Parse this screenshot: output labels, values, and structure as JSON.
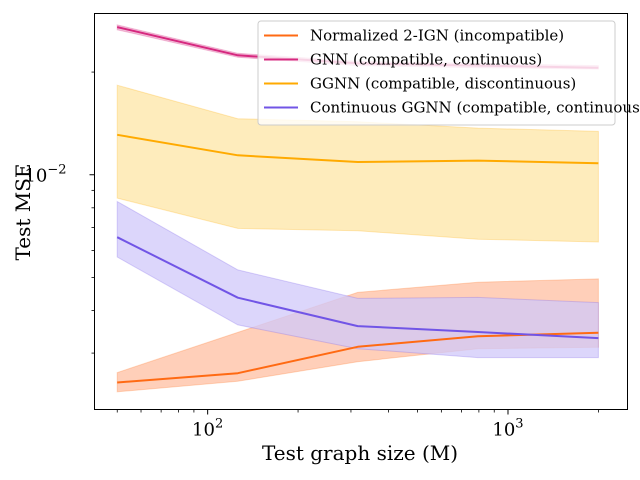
{
  "chart_data": {
    "type": "line",
    "xlabel": "Test graph size (M)",
    "ylabel": "Test MSE",
    "xscale": "log",
    "yscale": "log",
    "xlim": [
      42,
      2500
    ],
    "ylim": [
      0.00205,
      0.0297
    ],
    "x": [
      50,
      126,
      316,
      794,
      2000
    ],
    "x_ticks": [
      {
        "value": 100,
        "base": "10",
        "exp": "2"
      },
      {
        "value": 1000,
        "base": "10",
        "exp": "3"
      }
    ],
    "y_ticks": [
      {
        "value": 0.01,
        "base": "10",
        "exp": "−2"
      }
    ],
    "legend_position": "top-right",
    "grid": false,
    "series": [
      {
        "name": "Normalized 2-IGN (incompatible)",
        "color": "#ff6a13",
        "fill_color": "#ffbfa1",
        "values": [
          0.00246,
          0.00262,
          0.00313,
          0.00336,
          0.00344
        ],
        "lower": [
          0.00231,
          0.00248,
          0.00283,
          0.00309,
          0.00312
        ],
        "upper": [
          0.00263,
          0.00345,
          0.00452,
          0.00484,
          0.00495
        ]
      },
      {
        "name": "GNN (compatible, continuous)",
        "color": "#d6287f",
        "fill_color": "#eeaacc",
        "values": [
          0.0271,
          0.0224,
          0.0212,
          0.0209,
          0.0206
        ],
        "lower": [
          0.0266,
          0.0221,
          0.0209,
          0.0206,
          0.0204
        ],
        "upper": [
          0.0275,
          0.0227,
          0.0215,
          0.0212,
          0.0209
        ]
      },
      {
        "name": "GGNN (compatible, discontinuous)",
        "color": "#ffaa00",
        "fill_color": "#fde6a6",
        "values": [
          0.0131,
          0.0114,
          0.0109,
          0.011,
          0.0108
        ],
        "lower": [
          0.00854,
          0.00696,
          0.00685,
          0.00647,
          0.00635
        ],
        "upper": [
          0.0183,
          0.0146,
          0.0143,
          0.0137,
          0.0134
        ]
      },
      {
        "name": "Continuous GGNN (compatible, continuous)",
        "color": "#7155e6",
        "fill_color": "#d0c8fa",
        "values": [
          0.00656,
          0.00436,
          0.0036,
          0.00346,
          0.00332
        ],
        "lower": [
          0.00574,
          0.00363,
          0.00309,
          0.00291,
          0.00291
        ],
        "upper": [
          0.00835,
          0.00526,
          0.00434,
          0.00437,
          0.00422
        ]
      }
    ]
  }
}
